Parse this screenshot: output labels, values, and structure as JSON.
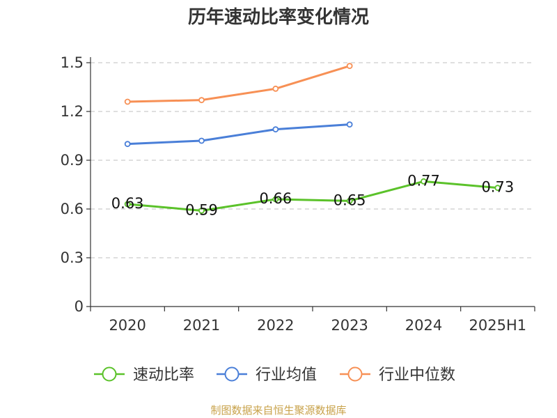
{
  "title": "历年速动比率变化情况",
  "footer": "制图数据来自恒生聚源数据库",
  "colors": {
    "speed": "#5bc22a",
    "industry_avg": "#4a7fd8",
    "industry_median": "#f79055"
  },
  "chart_data": {
    "type": "line",
    "categories": [
      "2020",
      "2021",
      "2022",
      "2023",
      "2024",
      "2025H1"
    ],
    "ylim": [
      0,
      1.5
    ],
    "yticks": [
      "0",
      "0.3",
      "0.6",
      "0.9",
      "1.2",
      "1.5"
    ],
    "grid": true,
    "legend_position": "bottom",
    "series": [
      {
        "name": "速动比率",
        "key": "speed",
        "values": [
          0.63,
          0.59,
          0.66,
          0.65,
          0.77,
          0.73
        ],
        "labels": [
          "0.63",
          "0.59",
          "0.66",
          "0.65",
          "0.77",
          "0.73"
        ],
        "show_labels": true
      },
      {
        "name": "行业均值",
        "key": "industry_avg",
        "values": [
          1.0,
          1.02,
          1.09,
          1.12,
          null,
          null
        ],
        "show_labels": false
      },
      {
        "name": "行业中位数",
        "key": "industry_median",
        "values": [
          1.26,
          1.27,
          1.34,
          1.48,
          null,
          null
        ],
        "show_labels": false
      }
    ]
  }
}
